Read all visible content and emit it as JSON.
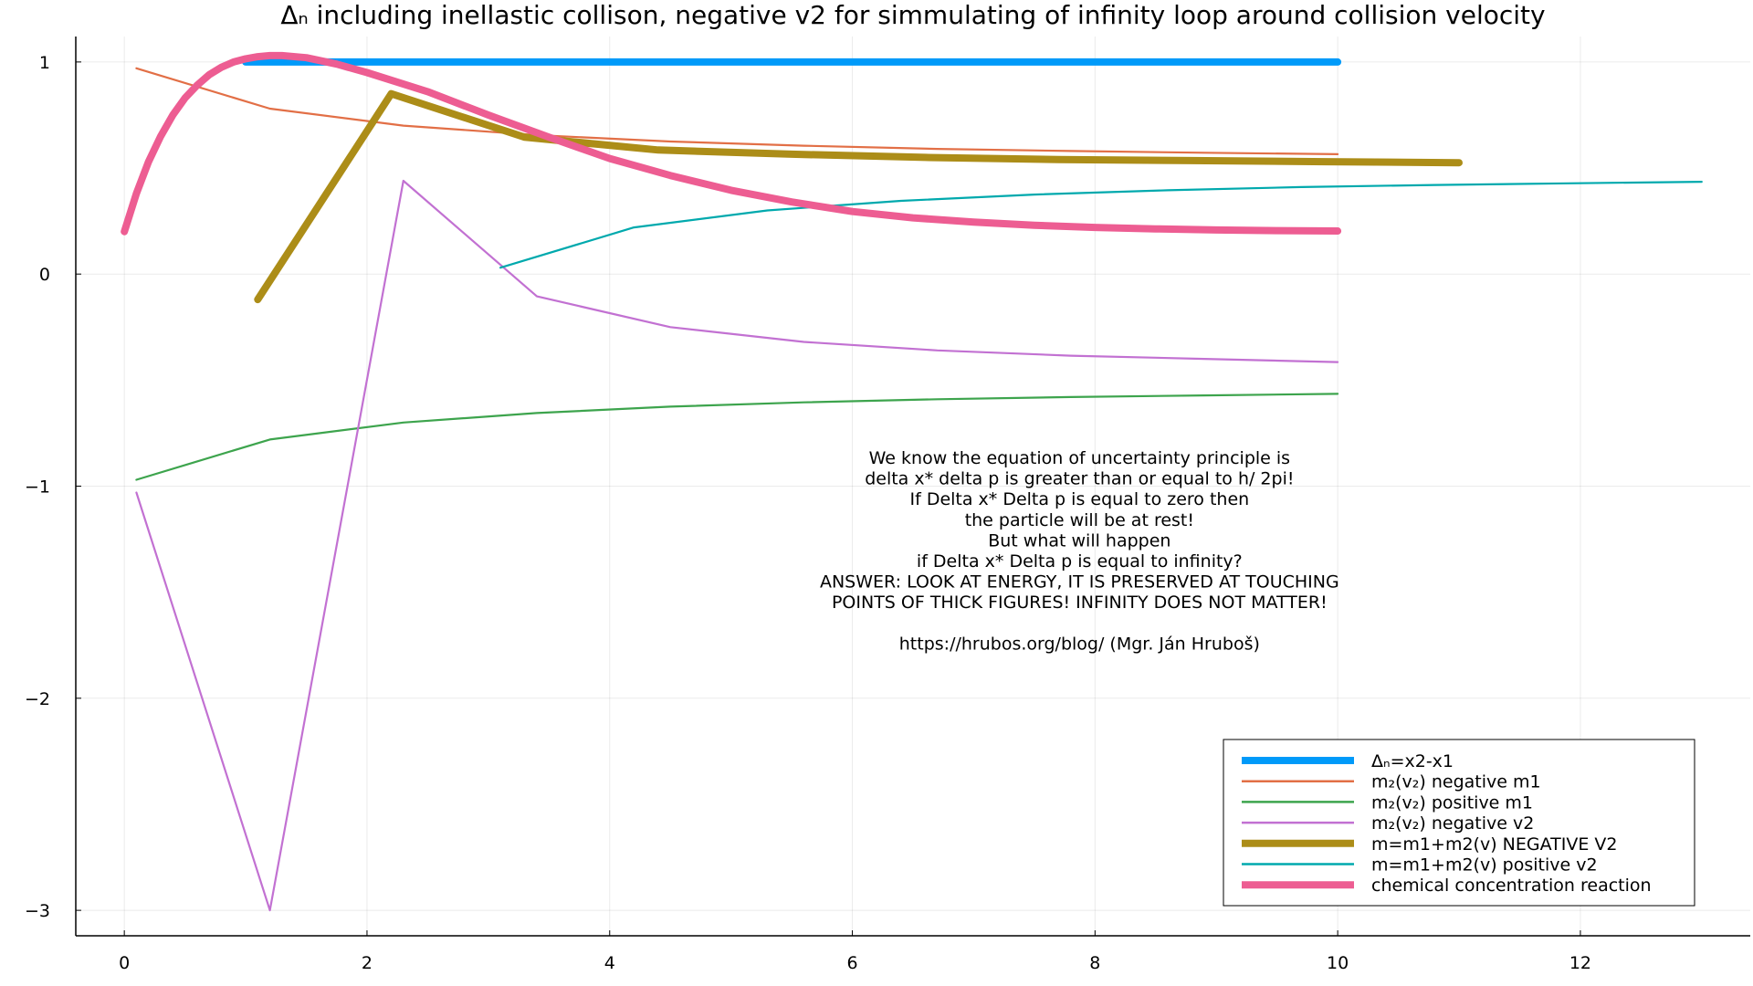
{
  "chart_data": {
    "type": "line",
    "title": "Δₙ including inellastic collison, negative v2 for simmulating of infinity loop around collision velocity",
    "xlabel": "",
    "ylabel": "",
    "xlim": [
      -0.4,
      13.4
    ],
    "ylim": [
      -3.12,
      1.12
    ],
    "xticks": [
      0,
      2,
      4,
      6,
      8,
      10,
      12
    ],
    "yticks": [
      1,
      0,
      -1,
      -2,
      -3
    ],
    "ytick_labels": [
      "1",
      "0",
      "−1",
      "−2",
      "−3"
    ],
    "grid": true,
    "legend_position": "bottom-right",
    "series": [
      {
        "name": "Δₙ=x2-x1",
        "color": "#009af9",
        "thick": true,
        "x": [
          1,
          2,
          3,
          4,
          5,
          6,
          7,
          8,
          9,
          10
        ],
        "y": [
          1,
          1,
          1,
          1,
          1,
          1,
          1,
          1,
          1,
          1
        ]
      },
      {
        "name": "m₂(v₂) negative m1",
        "color": "#e26f46",
        "thick": false,
        "x": [
          0.1,
          1.2,
          2.3,
          3.4,
          4.5,
          5.6,
          6.7,
          7.8,
          8.9,
          10
        ],
        "y": [
          0.97,
          0.78,
          0.7,
          0.655,
          0.625,
          0.605,
          0.59,
          0.58,
          0.572,
          0.565
        ]
      },
      {
        "name": "m₂(v₂) positive m1",
        "color": "#3da44d",
        "thick": false,
        "x": [
          0.1,
          1.2,
          2.3,
          3.4,
          4.5,
          5.6,
          6.7,
          7.8,
          8.9,
          10
        ],
        "y": [
          -0.97,
          -0.78,
          -0.7,
          -0.655,
          -0.625,
          -0.605,
          -0.59,
          -0.58,
          -0.572,
          -0.565
        ]
      },
      {
        "name": "m₂(v₂) negative v2",
        "color": "#c271d2",
        "thick": false,
        "x": [
          0.1,
          1.2,
          2.3,
          3.4,
          4.5,
          5.6,
          6.7,
          7.8,
          8.9,
          10
        ],
        "y": [
          -1.03,
          -3.0,
          0.44,
          -0.105,
          -0.25,
          -0.32,
          -0.36,
          -0.385,
          -0.4,
          -0.415
        ]
      },
      {
        "name": "m=m1+m2(v) NEGATIVE V2",
        "color": "#ac8d18",
        "thick": true,
        "x": [
          1.1,
          2.2,
          3.3,
          4.4,
          5.5,
          6.6,
          7.7,
          8.8,
          9.9,
          11
        ],
        "y": [
          -0.12,
          0.85,
          0.645,
          0.585,
          0.565,
          0.55,
          0.54,
          0.535,
          0.53,
          0.525
        ]
      },
      {
        "name": "m=m1+m2(v) positive v2",
        "color": "#00a9ad",
        "thick": false,
        "x": [
          3.1,
          4.2,
          5.3,
          6.4,
          7.5,
          8.6,
          9.7,
          10.8,
          11.9,
          13
        ],
        "y": [
          0.03,
          0.22,
          0.3,
          0.345,
          0.375,
          0.395,
          0.41,
          0.42,
          0.428,
          0.435
        ]
      },
      {
        "name": "chemical concentration reaction",
        "color": "#ed5d92",
        "thick": true,
        "x": [
          0,
          0.1,
          0.2,
          0.3,
          0.4,
          0.5,
          0.6,
          0.7,
          0.8,
          0.9,
          1.0,
          1.1,
          1.2,
          1.3,
          1.5,
          1.75,
          2.0,
          2.5,
          3.0,
          3.5,
          4.0,
          4.5,
          5.0,
          5.5,
          6.0,
          6.5,
          7.0,
          7.5,
          8.0,
          8.5,
          9.0,
          9.5,
          10.0
        ],
        "y": [
          0.2,
          0.38,
          0.53,
          0.65,
          0.75,
          0.83,
          0.89,
          0.94,
          0.975,
          1.0,
          1.015,
          1.025,
          1.03,
          1.03,
          1.02,
          0.99,
          0.95,
          0.86,
          0.75,
          0.645,
          0.545,
          0.465,
          0.395,
          0.34,
          0.295,
          0.265,
          0.245,
          0.23,
          0.22,
          0.213,
          0.208,
          0.205,
          0.203
        ]
      }
    ],
    "annotation": [
      "We know  the equation  of uncertainty  principle  is",
      "delta x* delta p is greater  than or equal  to  h/ 2pi!",
      "If Delta x* Delta p is equal  to  zero  then",
      "the  particle  will be at rest!",
      "But  what  will  happen",
      "if Delta x* Delta p  is equal  to  infinity?",
      "ANSWER: LOOK AT ENERGY, IT IS PRESERVED AT TOUCHING",
      "POINTS OF THICK FIGURES! INFINITY DOES NOT MATTER!",
      "",
      "https://hrubos.org/blog/ (Mgr. Ján Hruboš)"
    ],
    "annotation_anchor": [
      8.0,
      -0.9
    ]
  }
}
